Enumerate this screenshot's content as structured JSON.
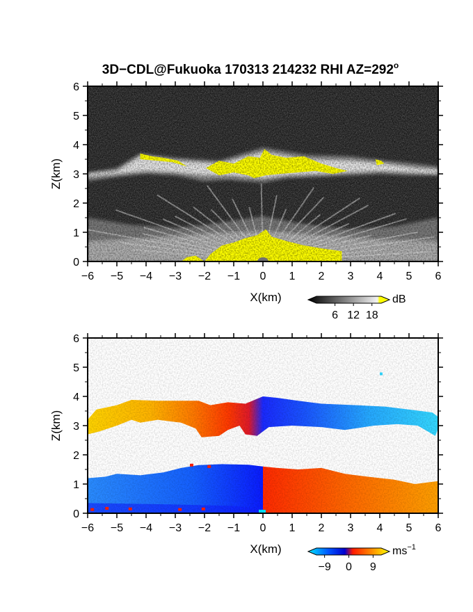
{
  "chart_data": [
    {
      "type": "heatmap",
      "title": "3D−CDL@Fukuoka 170313 214232 RHI AZ=292",
      "title_superscript": "o",
      "xlabel": "X(km)",
      "ylabel": "Z(km)",
      "xlim": [
        -6,
        6
      ],
      "ylim": [
        0,
        6
      ],
      "xticks": [
        -6,
        -5,
        -4,
        -3,
        -2,
        -1,
        0,
        1,
        2,
        3,
        4,
        5,
        6
      ],
      "yticks": [
        0,
        1,
        2,
        3,
        4,
        5,
        6
      ],
      "colorbar": {
        "unit": "dB",
        "ticks": [
          6,
          12,
          18
        ],
        "range": [
          0,
          21
        ],
        "colors": [
          "#000000",
          "#ffffff",
          "#ffff00"
        ]
      },
      "field": {
        "quantity": "signal intensity (dB)",
        "layers": [
          {
            "name": "upper cloud layer",
            "z_bottom_km": 2.8,
            "z_top_km": 3.8,
            "strong_echo_x_km": [
              -4.2,
              4.1
            ]
          },
          {
            "name": "near-surface fan",
            "z_top_km": 1.6,
            "strong_echo_x_km": [
              -2.0,
              2.7
            ]
          }
        ]
      }
    },
    {
      "type": "heatmap",
      "xlabel": "X(km)",
      "ylabel": "Z(km)",
      "xlim": [
        -6,
        6
      ],
      "ylim": [
        0,
        6
      ],
      "xticks": [
        -6,
        -5,
        -4,
        -3,
        -2,
        -1,
        0,
        1,
        2,
        3,
        4,
        5,
        6
      ],
      "yticks": [
        0,
        1,
        2,
        3,
        4,
        5,
        6
      ],
      "colorbar": {
        "unit": "ms",
        "unit_superscript": "−1",
        "ticks": [
          "−9",
          "0",
          "9"
        ],
        "range": [
          -12,
          12
        ],
        "colors": [
          "#00ffff",
          "#0000ff",
          "#ff0000",
          "#ffff00"
        ]
      },
      "field": {
        "quantity": "radial velocity (m/s)",
        "layers": [
          {
            "name": "upper layer",
            "z_bottom_km": 2.7,
            "z_top_km": 3.9,
            "x_km": [
              -6,
              6
            ]
          },
          {
            "name": "lower layer",
            "z_bottom_km": 0,
            "z_top_km": 1.7,
            "x_km": [
              -6,
              6
            ]
          }
        ]
      }
    }
  ]
}
